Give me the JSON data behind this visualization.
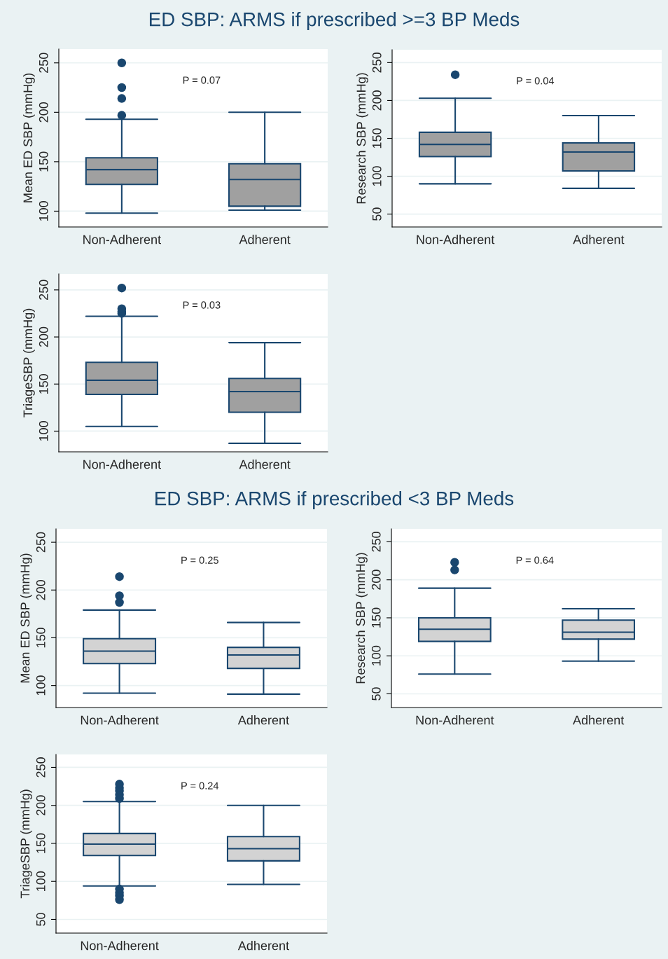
{
  "chart_data": [
    {
      "type": "box",
      "title": "ED SBP: ARMS if prescribed >=3 BP Meds",
      "ylabel": "Mean ED SBP (mmHg)",
      "categories": [
        "Non-Adherent",
        "Adherent"
      ],
      "color": "#a0a0a0",
      "ylim": [
        84,
        264
      ],
      "yticks": [
        100,
        150,
        200,
        250
      ],
      "grid": "y",
      "annotations": [
        "P = 0.07"
      ],
      "boxes": [
        {
          "low": 98,
          "q1": 127,
          "median": 142,
          "q3": 154,
          "high": 193,
          "outliers": [
            197,
            214,
            225,
            250
          ]
        },
        {
          "low": 101,
          "q1": 105,
          "median": 132,
          "q3": 148,
          "high": 200
        }
      ]
    },
    {
      "type": "box",
      "ylabel": "Research SBP (mmHg)",
      "categories": [
        "Non-Adherent",
        "Adherent"
      ],
      "color": "#a0a0a0",
      "ylim": [
        33,
        267
      ],
      "yticks": [
        50,
        100,
        150,
        200,
        250
      ],
      "grid": "y",
      "annotations": [
        "P = 0.04"
      ],
      "boxes": [
        {
          "low": 90,
          "q1": 126,
          "median": 142,
          "q3": 158,
          "high": 203,
          "outliers": [
            234
          ]
        },
        {
          "low": 84,
          "q1": 107,
          "median": 132,
          "q3": 144,
          "high": 180
        }
      ]
    },
    {
      "type": "box",
      "ylabel": "TriageSBP (mmHg)",
      "categories": [
        "Non-Adherent",
        "Adherent"
      ],
      "color": "#a0a0a0",
      "ylim": [
        78,
        267
      ],
      "yticks": [
        100,
        150,
        200,
        250
      ],
      "grid": "y",
      "annotations": [
        "P = 0.03"
      ],
      "boxes": [
        {
          "low": 105,
          "q1": 139,
          "median": 154,
          "q3": 173,
          "high": 222,
          "outliers": [
            225,
            227,
            230,
            252
          ]
        },
        {
          "low": 87,
          "q1": 120,
          "median": 142,
          "q3": 156,
          "high": 194
        }
      ]
    },
    {
      "type": "box",
      "title": "ED SBP: ARMS if prescribed <3 BP Meds",
      "ylabel": "Mean ED SBP (mmHg)",
      "categories": [
        "Non-Adherent",
        "Adherent"
      ],
      "color": "#d3d3d3",
      "ylim": [
        77,
        264
      ],
      "yticks": [
        100,
        150,
        200,
        250
      ],
      "grid": "y",
      "annotations": [
        "P = 0.25"
      ],
      "boxes": [
        {
          "low": 92,
          "q1": 123,
          "median": 136,
          "q3": 149,
          "high": 179,
          "outliers": [
            187,
            194,
            214
          ]
        },
        {
          "low": 91,
          "q1": 118,
          "median": 132,
          "q3": 140,
          "high": 166
        }
      ]
    },
    {
      "type": "box",
      "ylabel": "Research SBP (mmHg)",
      "categories": [
        "Non-Adherent",
        "Adherent"
      ],
      "color": "#d3d3d3",
      "ylim": [
        32,
        267
      ],
      "yticks": [
        50,
        100,
        150,
        200,
        250
      ],
      "grid": "y",
      "annotations": [
        "P = 0.64"
      ],
      "boxes": [
        {
          "low": 76,
          "q1": 119,
          "median": 135,
          "q3": 150,
          "high": 189,
          "outliers": [
            213,
            223
          ]
        },
        {
          "low": 93,
          "q1": 122,
          "median": 131,
          "q3": 147,
          "high": 162
        }
      ]
    },
    {
      "type": "box",
      "ylabel": "TriageSBP (mmHg)",
      "categories": [
        "Non-Adherent",
        "Adherent"
      ],
      "color": "#d3d3d3",
      "ylim": [
        32,
        267
      ],
      "yticks": [
        50,
        100,
        150,
        200,
        250
      ],
      "grid": "y",
      "annotations": [
        "P = 0.24"
      ],
      "boxes": [
        {
          "low": 94,
          "q1": 134,
          "median": 149,
          "q3": 163,
          "high": 205,
          "outliers": [
            76,
            81,
            85,
            90,
            209,
            214,
            219,
            223,
            228
          ]
        },
        {
          "low": 96,
          "q1": 127,
          "median": 143,
          "q3": 159,
          "high": 200
        }
      ]
    }
  ]
}
